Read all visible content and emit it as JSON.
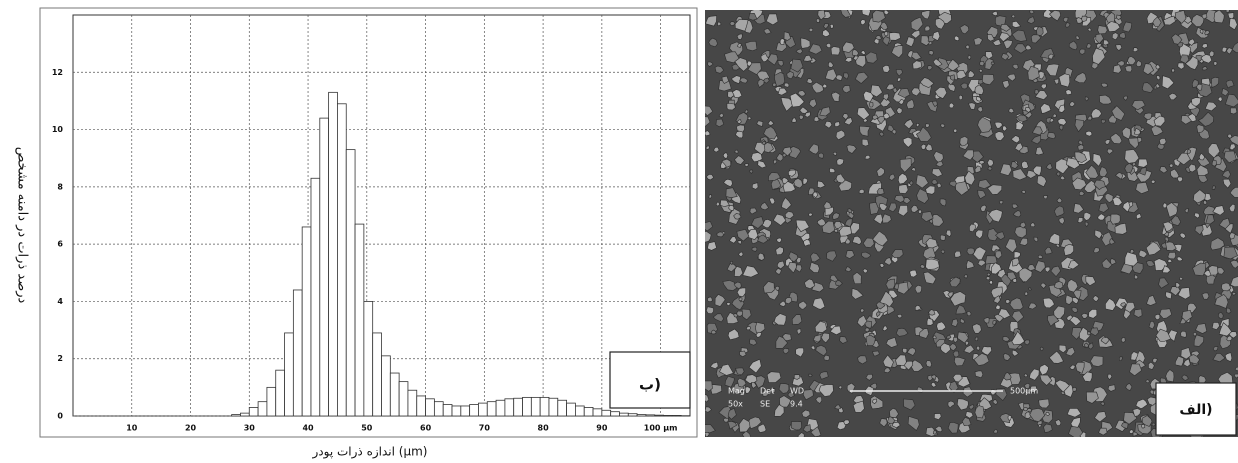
{
  "chart_data": {
    "type": "histogram",
    "y_label": "درصد ذرات در دامنه مشخص",
    "x_label": "اندازه ذرات پودر (µm)",
    "bins": [
      27,
      28.5,
      30,
      31.5,
      33,
      34.5,
      36,
      37.5,
      39,
      40.5,
      42,
      43.5,
      45,
      46.5,
      48,
      49.5,
      51,
      52.5,
      54,
      55.5,
      57,
      58.5,
      60,
      61.5,
      63,
      64.5,
      66,
      67.5,
      69,
      70.5,
      72,
      73.5,
      75,
      76.5,
      78,
      79.5,
      81,
      82.5,
      84,
      85.5,
      87,
      88.5,
      90,
      91.5,
      93,
      94.5,
      96,
      97.5,
      99,
      100.5,
      102,
      103.5,
      105
    ],
    "values": [
      0.05,
      0.1,
      0.3,
      0.5,
      1.0,
      1.6,
      2.9,
      4.4,
      6.6,
      8.3,
      10.4,
      11.3,
      10.9,
      9.3,
      6.7,
      4.0,
      2.9,
      2.1,
      1.5,
      1.2,
      0.9,
      0.7,
      0.6,
      0.5,
      0.4,
      0.35,
      0.35,
      0.4,
      0.45,
      0.5,
      0.55,
      0.6,
      0.62,
      0.65,
      0.65,
      0.65,
      0.62,
      0.55,
      0.45,
      0.35,
      0.3,
      0.25,
      0.2,
      0.15,
      0.1,
      0.08,
      0.05,
      0.04,
      0.03,
      0.02,
      0.02,
      0.01
    ],
    "color": "#ffffff",
    "xlim": [
      0,
      105
    ],
    "xticks": [
      10,
      20,
      30,
      40,
      50,
      60,
      70,
      80,
      90,
      {
        "value": 100,
        "label": "100 µm"
      }
    ],
    "ylim": [
      0,
      14
    ],
    "yticks": [
      0,
      2,
      4,
      6,
      8,
      10,
      12
    ],
    "grid": true,
    "panel_label": "ب)"
  },
  "image_panel": {
    "panel_label": "الف)",
    "info_bar": [
      "Mag",
      "Det",
      "WD",
      "50x",
      "SE",
      "9.4"
    ],
    "scale_bar": "500µm"
  }
}
